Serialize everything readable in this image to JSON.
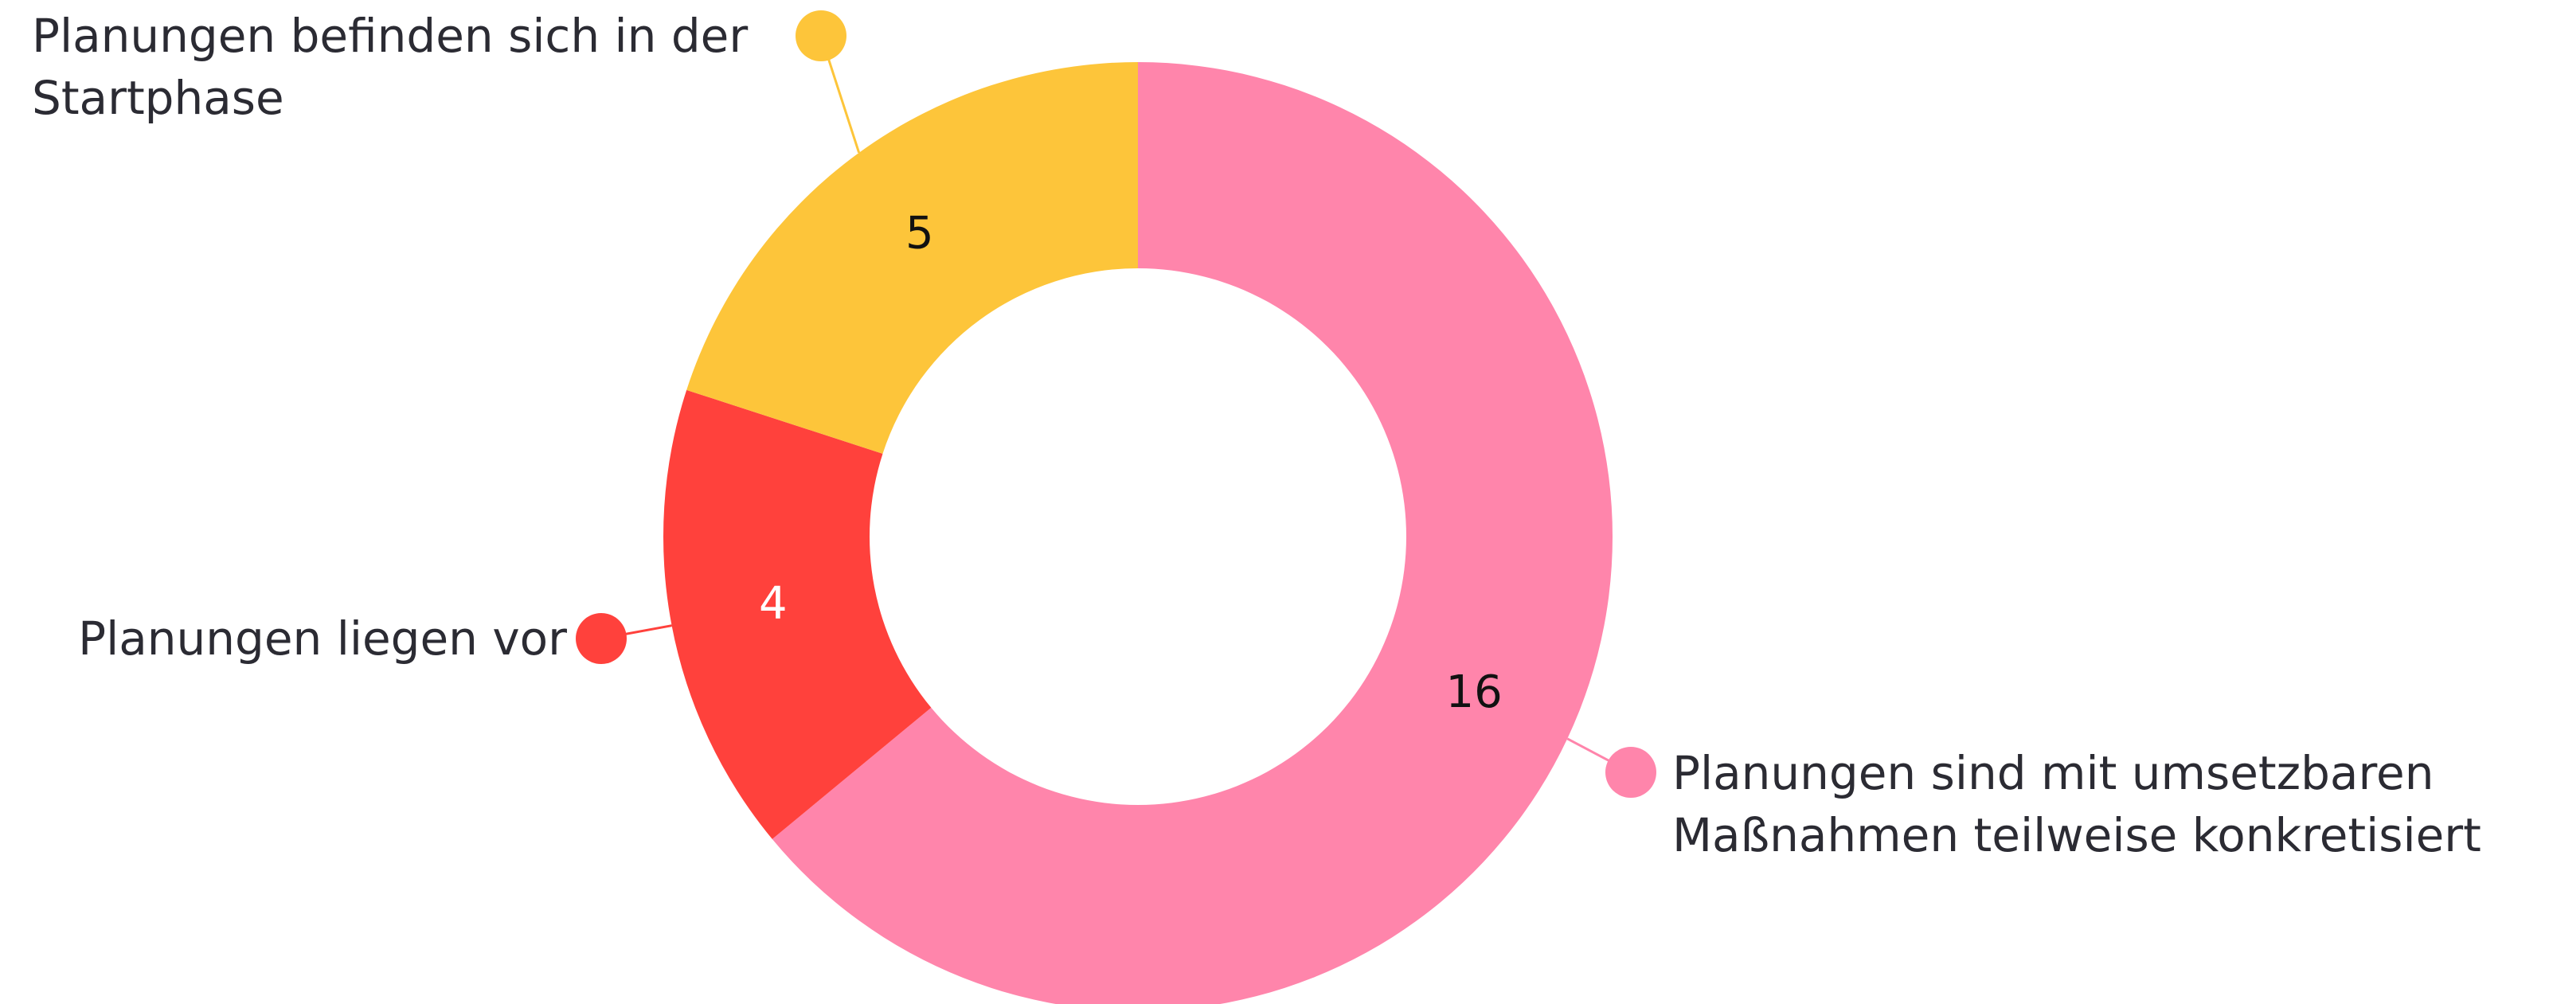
{
  "chart_data": {
    "type": "pie",
    "donut": true,
    "categories": [
      "Planungen sind mit umsetzbaren Maßnahmen teilweise konkretisiert",
      "Planungen liegen vor",
      "Planungen befinden sich in der Startphase"
    ],
    "values": [
      16,
      4,
      5
    ],
    "colors": [
      "#ff85ab",
      "#ff413c",
      "#fdc53a"
    ]
  }
}
